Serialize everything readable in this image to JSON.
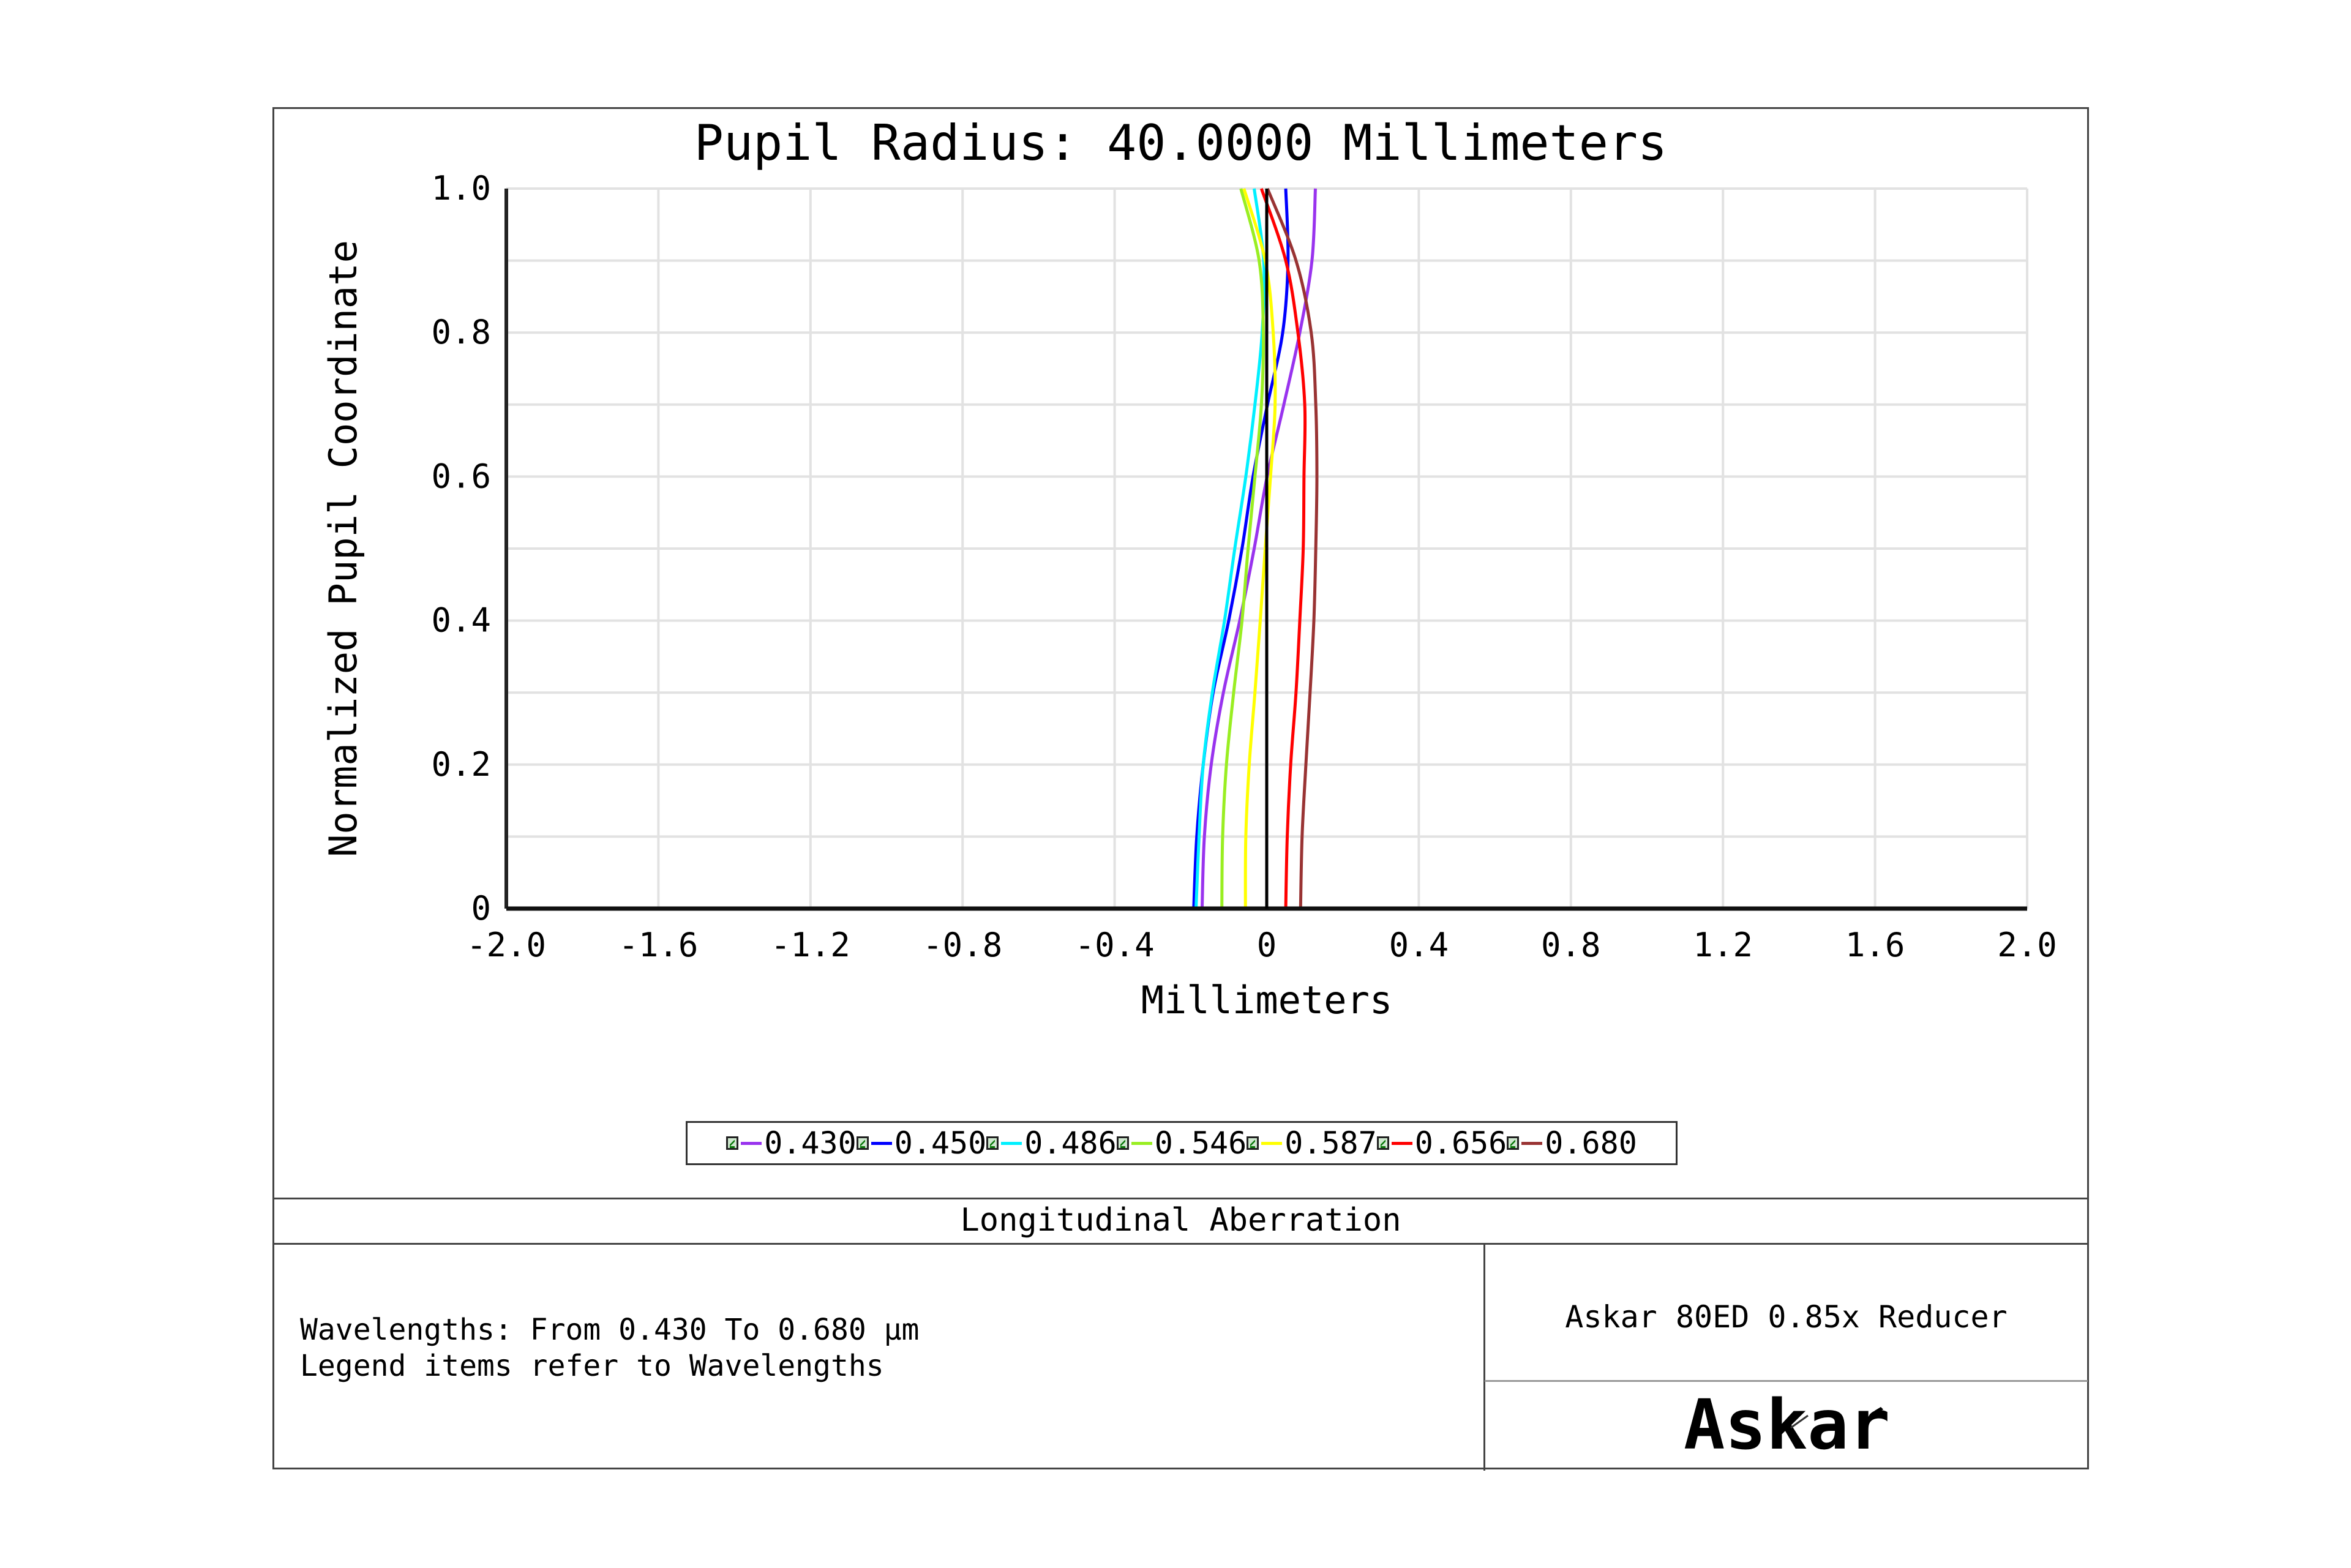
{
  "title": "Pupil Radius: 40.0000 Millimeters",
  "caption": "Longitudinal Aberration",
  "notes": {
    "line1": "Wavelengths: From 0.430 To 0.680 µm",
    "line2": "Legend items refer to Wavelengths"
  },
  "product": "Askar 80ED 0.85x Reducer",
  "logo_text": "Askar",
  "chart_data": {
    "type": "line",
    "title": "Pupil Radius: 40.0000 Millimeters",
    "xlabel": "Millimeters",
    "ylabel": "Normalized Pupil Coordinate",
    "xlim": [
      -2.0,
      2.0
    ],
    "ylim": [
      0,
      1.0
    ],
    "xticks": [
      "-2.0",
      "-1.6",
      "-1.2",
      "-0.8",
      "-0.4",
      "0",
      "0.4",
      "0.8",
      "1.2",
      "1.6",
      "2.0"
    ],
    "yticks": [
      "0",
      "0.2",
      "0.4",
      "0.6",
      "0.8",
      "1.0"
    ],
    "grid": true,
    "legend_position": "bottom",
    "y": [
      0,
      0.1,
      0.2,
      0.3,
      0.4,
      0.5,
      0.6,
      0.7,
      0.8,
      0.9,
      1.0
    ],
    "series": [
      {
        "name": "0.430",
        "color": "#9933ee",
        "x": [
          -0.17,
          -0.164,
          -0.146,
          -0.114,
          -0.071,
          -0.033,
          0.001,
          0.045,
          0.087,
          0.119,
          0.128
        ]
      },
      {
        "name": "0.450",
        "color": "#0000ff",
        "x": [
          -0.192,
          -0.184,
          -0.167,
          -0.141,
          -0.1,
          -0.065,
          -0.036,
          0.002,
          0.042,
          0.056,
          0.05
        ]
      },
      {
        "name": "0.486",
        "color": "#00f0ff",
        "x": [
          -0.186,
          -0.178,
          -0.167,
          -0.143,
          -0.111,
          -0.084,
          -0.055,
          -0.031,
          -0.012,
          -0.008,
          -0.033
        ]
      },
      {
        "name": "0.546",
        "color": "#99ee22",
        "x": [
          -0.118,
          -0.116,
          -0.106,
          -0.087,
          -0.065,
          -0.049,
          -0.031,
          -0.014,
          -0.009,
          -0.02,
          -0.068
        ]
      },
      {
        "name": "0.587",
        "color": "#ffff00",
        "x": [
          -0.056,
          -0.055,
          -0.046,
          -0.031,
          -0.017,
          -0.004,
          0.01,
          0.022,
          0.017,
          -0.004,
          -0.06
        ]
      },
      {
        "name": "0.656",
        "color": "#ff0000",
        "x": [
          0.05,
          0.054,
          0.063,
          0.077,
          0.087,
          0.096,
          0.098,
          0.1,
          0.082,
          0.05,
          -0.014
        ]
      },
      {
        "name": "0.680",
        "color": "#993333",
        "x": [
          0.089,
          0.093,
          0.103,
          0.114,
          0.124,
          0.129,
          0.132,
          0.129,
          0.117,
          0.077,
          0.002
        ]
      }
    ]
  }
}
